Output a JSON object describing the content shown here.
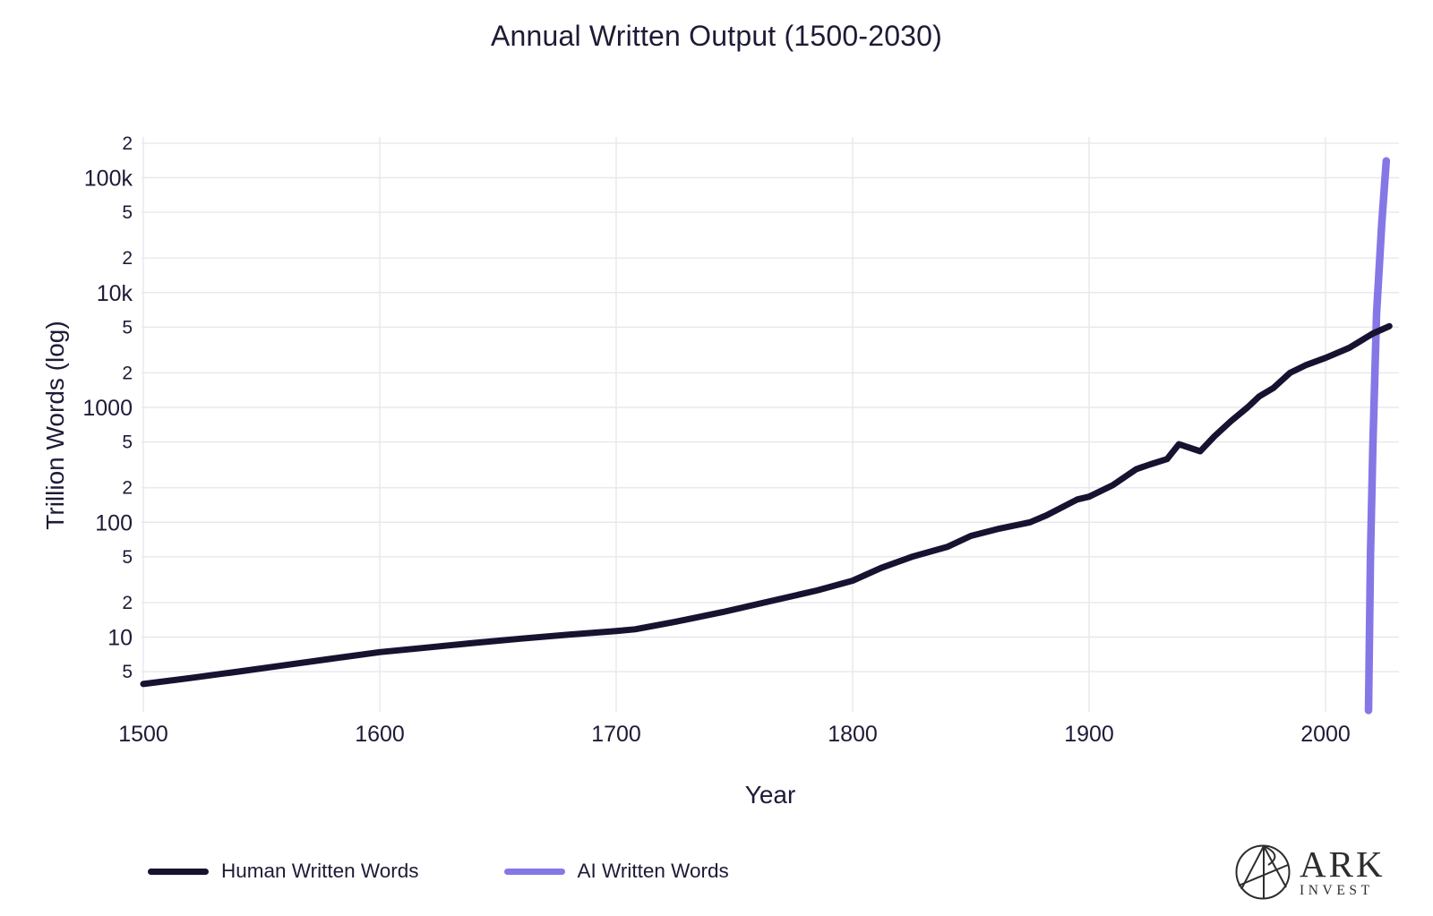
{
  "page": {
    "title": "Annual Written Output (1500-2030)"
  },
  "axes": {
    "x_label": "Year",
    "y_label": "Trillion Words (log)"
  },
  "legend": {
    "items": [
      {
        "label": "Human Written Words",
        "color": "#171230"
      },
      {
        "label": "AI Written Words",
        "color": "#8577e6"
      }
    ]
  },
  "branding": {
    "name": "ARK",
    "subname": "INVEST"
  },
  "colors": {
    "background": "#ffffff",
    "text": "#1d1b36",
    "grid": "#e8e8ed",
    "human_line": "#171230",
    "ai_line": "#8577e6",
    "logo": "#2d2d2d"
  },
  "chart_data": {
    "type": "line",
    "title": "Annual Written Output (1500-2030)",
    "xlabel": "Year",
    "ylabel": "Trillion Words (log)",
    "x_scale": "linear",
    "y_scale": "log",
    "xlim": [
      1498,
      2031
    ],
    "ylim": [
      2.1,
      220000
    ],
    "grid": true,
    "legend_position": "bottom",
    "x_ticks": [
      1500,
      1600,
      1700,
      1800,
      1900,
      2000
    ],
    "y_ticks": [
      {
        "v": 5,
        "label": "5",
        "major": false
      },
      {
        "v": 10,
        "label": "10",
        "major": true
      },
      {
        "v": 20,
        "label": "2",
        "major": false
      },
      {
        "v": 50,
        "label": "5",
        "major": false
      },
      {
        "v": 100,
        "label": "100",
        "major": true
      },
      {
        "v": 200,
        "label": "2",
        "major": false
      },
      {
        "v": 500,
        "label": "5",
        "major": false
      },
      {
        "v": 1000,
        "label": "1000",
        "major": true
      },
      {
        "v": 2000,
        "label": "2",
        "major": false
      },
      {
        "v": 5000,
        "label": "5",
        "major": false
      },
      {
        "v": 10000,
        "label": "10k",
        "major": true
      },
      {
        "v": 20000,
        "label": "2",
        "major": false
      },
      {
        "v": 50000,
        "label": "5",
        "major": false
      },
      {
        "v": 100000,
        "label": "100k",
        "major": true
      },
      {
        "v": 200000,
        "label": "2",
        "major": false
      }
    ],
    "series": [
      {
        "name": "Human Written Words",
        "color": "#171230",
        "line_width": 7,
        "points": [
          [
            1500,
            3.9
          ],
          [
            1520,
            4.4
          ],
          [
            1540,
            5.0
          ],
          [
            1560,
            5.7
          ],
          [
            1580,
            6.5
          ],
          [
            1600,
            7.4
          ],
          [
            1620,
            8.1
          ],
          [
            1640,
            8.9
          ],
          [
            1660,
            9.7
          ],
          [
            1680,
            10.5
          ],
          [
            1700,
            11.3
          ],
          [
            1708,
            11.7
          ],
          [
            1725,
            13.6
          ],
          [
            1745,
            16.5
          ],
          [
            1765,
            20.5
          ],
          [
            1785,
            25.5
          ],
          [
            1800,
            31
          ],
          [
            1812,
            40
          ],
          [
            1825,
            50
          ],
          [
            1840,
            61
          ],
          [
            1850,
            76
          ],
          [
            1862,
            88
          ],
          [
            1875,
            100
          ],
          [
            1882,
            115
          ],
          [
            1895,
            158
          ],
          [
            1900,
            167
          ],
          [
            1910,
            210
          ],
          [
            1920,
            290
          ],
          [
            1926,
            320
          ],
          [
            1933,
            355
          ],
          [
            1938,
            478
          ],
          [
            1947,
            415
          ],
          [
            1953,
            560
          ],
          [
            1960,
            760
          ],
          [
            1967,
            1000
          ],
          [
            1972,
            1250
          ],
          [
            1978,
            1480
          ],
          [
            1985,
            2000
          ],
          [
            1992,
            2350
          ],
          [
            2000,
            2700
          ],
          [
            2010,
            3300
          ],
          [
            2020,
            4400
          ],
          [
            2027,
            5100
          ]
        ]
      },
      {
        "name": "AI Written Words",
        "color": "#8577e6",
        "line_width": 8.5,
        "points": [
          [
            2018.2,
            2.3
          ],
          [
            2019,
            52
          ],
          [
            2020,
            445
          ],
          [
            2021.6,
            6600
          ],
          [
            2023.8,
            40000
          ],
          [
            2025.7,
            140000
          ]
        ]
      }
    ]
  }
}
